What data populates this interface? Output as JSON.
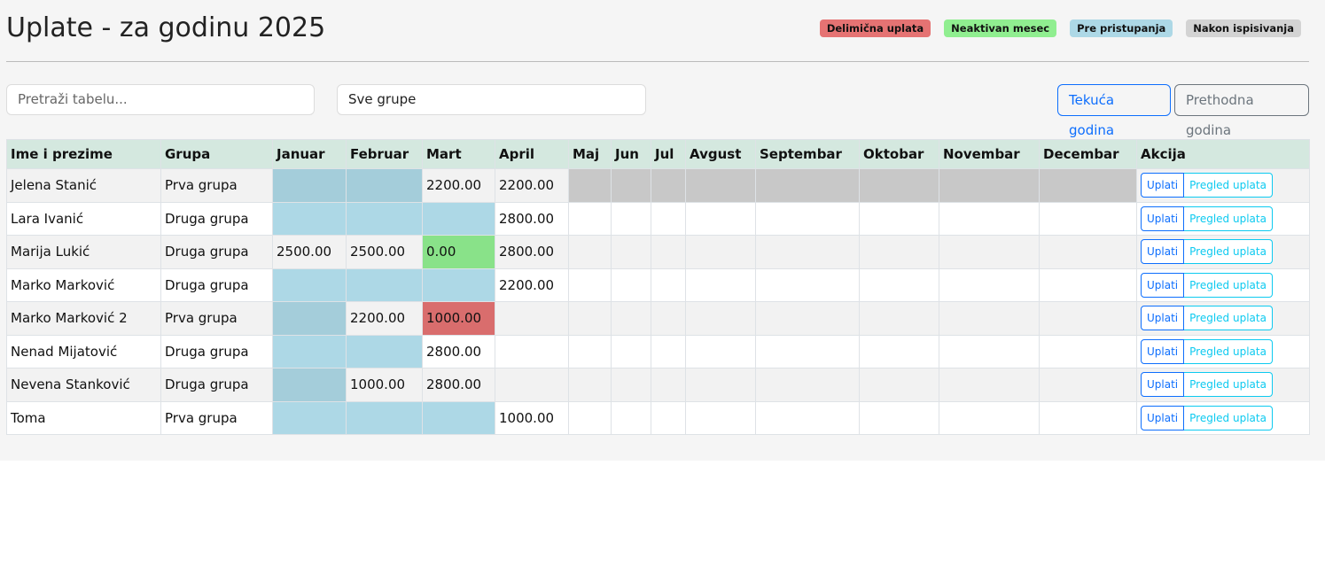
{
  "header": {
    "title": "Uplate - za godinu 2025",
    "legend": [
      {
        "label": "Delimična uplata",
        "status": "partial",
        "color": "#e57373"
      },
      {
        "label": "Neaktivan mesec",
        "status": "inactive",
        "color": "#90ee90"
      },
      {
        "label": "Pre pristupanja",
        "status": "pre",
        "color": "#add8e6"
      },
      {
        "label": "Nakon ispisivanja",
        "status": "after",
        "color": "#d3d3d3"
      }
    ]
  },
  "filters": {
    "search_placeholder": "Pretraži tabelu...",
    "group": "Sve grupe"
  },
  "year_buttons": {
    "current": "Tekuća godina",
    "previous": "Prethodna godina"
  },
  "table": {
    "columns": [
      "Ime i prezime",
      "Grupa",
      "Januar",
      "Februar",
      "Mart",
      "April",
      "Maj",
      "Jun",
      "Jul",
      "Avgust",
      "Septembar",
      "Oktobar",
      "Novembar",
      "Decembar",
      "Akcija"
    ],
    "actions": {
      "pay": "Uplati",
      "history": "Pregled uplata"
    },
    "rows": [
      {
        "name": "Jelena Stanić",
        "group": "Prva grupa",
        "months": [
          null,
          null,
          "2200.00",
          "2200.00",
          null,
          null,
          null,
          null,
          null,
          null,
          null,
          null
        ],
        "status": [
          "pre",
          "pre",
          null,
          null,
          "after",
          "after",
          "after",
          "after",
          "after",
          "after",
          "after",
          "after"
        ]
      },
      {
        "name": "Lara Ivanić",
        "group": "Druga grupa",
        "months": [
          null,
          null,
          null,
          "2800.00",
          null,
          null,
          null,
          null,
          null,
          null,
          null,
          null
        ],
        "status": [
          "pre",
          "pre",
          "pre",
          null,
          null,
          null,
          null,
          null,
          null,
          null,
          null,
          null
        ]
      },
      {
        "name": "Marija Lukić",
        "group": "Druga grupa",
        "months": [
          "2500.00",
          "2500.00",
          "0.00",
          "2800.00",
          null,
          null,
          null,
          null,
          null,
          null,
          null,
          null
        ],
        "status": [
          null,
          null,
          "inactive",
          null,
          null,
          null,
          null,
          null,
          null,
          null,
          null,
          null
        ]
      },
      {
        "name": "Marko Marković",
        "group": "Druga grupa",
        "months": [
          null,
          null,
          null,
          "2200.00",
          null,
          null,
          null,
          null,
          null,
          null,
          null,
          null
        ],
        "status": [
          "pre",
          "pre",
          "pre",
          null,
          null,
          null,
          null,
          null,
          null,
          null,
          null,
          null
        ]
      },
      {
        "name": "Marko Marković 2",
        "group": "Prva grupa",
        "months": [
          null,
          "2200.00",
          "1000.00",
          null,
          null,
          null,
          null,
          null,
          null,
          null,
          null,
          null
        ],
        "status": [
          "pre",
          null,
          "partial",
          null,
          null,
          null,
          null,
          null,
          null,
          null,
          null,
          null
        ]
      },
      {
        "name": "Nenad Mijatović",
        "group": "Druga grupa",
        "months": [
          null,
          null,
          "2800.00",
          null,
          null,
          null,
          null,
          null,
          null,
          null,
          null,
          null
        ],
        "status": [
          "pre",
          "pre",
          null,
          null,
          null,
          null,
          null,
          null,
          null,
          null,
          null,
          null
        ]
      },
      {
        "name": "Nevena Stanković",
        "group": "Druga grupa",
        "months": [
          null,
          "1000.00",
          "2800.00",
          null,
          null,
          null,
          null,
          null,
          null,
          null,
          null,
          null
        ],
        "status": [
          "pre",
          null,
          null,
          null,
          null,
          null,
          null,
          null,
          null,
          null,
          null,
          null
        ]
      },
      {
        "name": "Toma",
        "group": "Prva grupa",
        "months": [
          null,
          null,
          null,
          "1000.00",
          null,
          null,
          null,
          null,
          null,
          null,
          null,
          null
        ],
        "status": [
          "pre",
          "pre",
          "pre",
          null,
          null,
          null,
          null,
          null,
          null,
          null,
          null,
          null
        ]
      }
    ]
  }
}
